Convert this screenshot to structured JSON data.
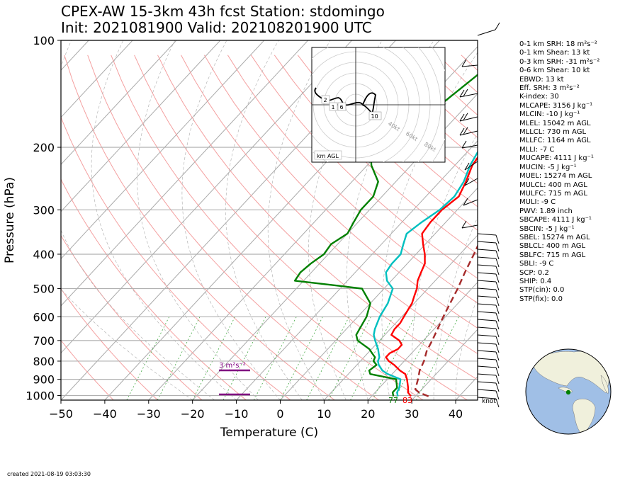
{
  "title_line1": "CPEX-AW 15-3km  43h fcst  Station: stdomingo",
  "title_line2": "Init: 2021081900  Valid: 202108201900 UTC",
  "created": "created 2021-08-19 03:03:30",
  "colors": {
    "temperature": "#ff0000",
    "dewpoint": "#008000",
    "wetbulb": "#00bfbf",
    "parcel": "#a52a2a",
    "srh_bar": "#800080",
    "map_ocean": "#a0bfe6",
    "map_land": "#f0f0dc"
  },
  "barb_units": "knot",
  "hodograph": {
    "label": "km AGL",
    "ring_labels": [
      "40kt",
      "60kt",
      "80kt"
    ],
    "height_labels": [
      "1",
      "2",
      "6",
      "10"
    ]
  },
  "surface_values": {
    "temperature": "83",
    "dewpoint": "77"
  },
  "srh_annotation": "3 m²s⁻²",
  "indices": [
    "0-1 km SRH: 18 m²s⁻²",
    "0-1 km Shear: 13 kt",
    "0-3 km SRH: -31 m²s⁻²",
    "0-6 km Shear: 10 kt",
    "EBWD: 13 kt",
    "Eff. SRH: 3 m²s⁻²",
    "K-index: 30",
    "MLCAPE: 3156 J kg⁻¹",
    "MLCIN: -10 J kg⁻¹",
    "MLEL: 15042 m AGL",
    "MLLCL: 730 m AGL",
    "MLLFC: 1164 m AGL",
    "MLLI: -7 C",
    "MUCAPE: 4111 J kg⁻¹",
    "MUCIN: -5 J kg⁻¹",
    "MUEL: 15274 m AGL",
    "MULCL: 400 m AGL",
    "MULFC: 715 m AGL",
    "MULI: -9 C",
    "PWV: 1.89 inch",
    "SBCAPE: 4111 J kg⁻¹",
    "SBCIN: -5 J kg⁻¹",
    "SBEL: 15274 m AGL",
    "SBLCL: 400 m AGL",
    "SBLFC: 715 m AGL",
    "SBLI: -9 C",
    "SCP: 0.2",
    "SHIP: 0.4",
    "STP(cin): 0.0",
    "STP(fix): 0.0"
  ],
  "chart_data": {
    "type": "line",
    "subtype": "skew-T log-p",
    "xlabel": "Temperature (C)",
    "ylabel": "Pressure (hPa)",
    "xlim": [
      -50,
      45
    ],
    "ylim": [
      1030,
      100
    ],
    "y_scale": "log",
    "x_ticks": [
      -50,
      -40,
      -30,
      -20,
      -10,
      0,
      10,
      20,
      30,
      40
    ],
    "y_ticks": [
      100,
      200,
      300,
      400,
      500,
      600,
      700,
      800,
      900,
      1000
    ],
    "series": [
      {
        "key": "temperature",
        "pressure": [
          1005,
          980,
          950,
          900,
          870,
          850,
          820,
          800,
          780,
          760,
          740,
          720,
          700,
          675,
          650,
          625,
          600,
          575,
          550,
          525,
          500,
          475,
          450,
          425,
          400,
          375,
          350,
          325,
          300,
          275,
          250,
          225,
          200,
          175,
          150,
          125,
          100
        ],
        "x": [
          29,
          27.5,
          26.5,
          24.5,
          23,
          21,
          18.5,
          16.5,
          15,
          15,
          16,
          16,
          14.5,
          11.5,
          11,
          11,
          10.5,
          10,
          9.5,
          8.5,
          7.5,
          6,
          5,
          4,
          2,
          -0.5,
          -3,
          -3.5,
          -3.5,
          -2.5,
          -4,
          -6,
          -7,
          -6,
          -5,
          -3,
          -2
        ]
      },
      {
        "key": "wetbulb",
        "pressure": [
          1005,
          980,
          950,
          900,
          870,
          850,
          820,
          800,
          780,
          760,
          740,
          700,
          675,
          650,
          600,
          550,
          500,
          475,
          450,
          425,
          400,
          375,
          350,
          325,
          300,
          275,
          250,
          225,
          200,
          175,
          150,
          125,
          100
        ],
        "x": [
          26,
          25,
          24.5,
          23,
          19,
          17,
          15,
          14,
          13.5,
          12.5,
          11.5,
          9,
          7.5,
          6.5,
          5,
          4,
          2,
          -1,
          -3,
          -3.5,
          -3.5,
          -5,
          -6.5,
          -5.5,
          -4,
          -3.5,
          -4.5,
          -6.5,
          -8,
          -7,
          -6,
          -4,
          -2
        ]
      },
      {
        "key": "dewpoint",
        "pressure": [
          1005,
          980,
          950,
          900,
          870,
          850,
          820,
          800,
          780,
          760,
          740,
          700,
          675,
          650,
          600,
          550,
          500,
          490,
          475,
          450,
          425,
          400,
          375,
          350,
          325,
          300,
          275,
          250,
          225,
          200,
          180,
          150,
          125,
          100
        ],
        "x": [
          25,
          24,
          24,
          22,
          15,
          14,
          14.5,
          13,
          12.5,
          11,
          9.5,
          5,
          3.5,
          3,
          2,
          0,
          -5,
          -11.5,
          -22,
          -22.5,
          -22,
          -21,
          -21.5,
          -20,
          -21,
          -22,
          -22,
          -24,
          -29,
          -33,
          -29,
          -26,
          -24,
          -18
        ]
      },
      {
        "key": "parcel",
        "style": "dashed",
        "pressure": [
          1005,
          980,
          960,
          940,
          920,
          900,
          850,
          800,
          750,
          700,
          650,
          600,
          550,
          500,
          450,
          400,
          350,
          300,
          250,
          200,
          150,
          125,
          100
        ],
        "x": [
          33,
          30,
          28.5,
          28,
          27.5,
          27,
          25.5,
          24.5,
          23,
          22,
          20.8,
          19.5,
          18.2,
          16.8,
          15,
          13.2,
          11,
          8,
          5.5,
          2,
          -4,
          -8,
          -12
        ]
      }
    ]
  }
}
